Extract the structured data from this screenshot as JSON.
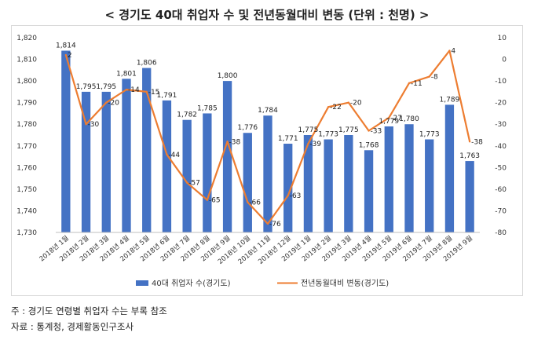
{
  "title": "< 경기도 40대 취업자 수 및 전년동월대비 변동 (단위 : 천명) >",
  "notes": {
    "note1": "주 : 경기도 연령별 취업자 수는 부록 참조",
    "note2": "자료 : 통계청, 경제활동인구조사"
  },
  "colors": {
    "bar": "#4472C4",
    "line": "#ED7D31"
  },
  "chart_data": {
    "type": "bar",
    "title": "< 경기도 40대 취업자 수 및 전년동월대비 변동 (단위 : 천명) >",
    "categories": [
      "2018년 1월",
      "2018년 2월",
      "2018년 3월",
      "2018년 4월",
      "2018년 5월",
      "2018년 6월",
      "2018년 7월",
      "2018년 8월",
      "2018년 9월",
      "2018년 10월",
      "2018년 11월",
      "2018년 12월",
      "2019년 1월",
      "2019년 2월",
      "2019년 3월",
      "2019년 4월",
      "2019년 5월",
      "2019년 6월",
      "2019년 7월",
      "2019년 8월",
      "2019년 9월"
    ],
    "series": [
      {
        "name": "40대 취업자 수(경기도)",
        "type": "bar",
        "axis": "left",
        "values": [
          1814,
          1795,
          1795,
          1801,
          1806,
          1791,
          1782,
          1785,
          1800,
          1776,
          1784,
          1771,
          1775,
          1773,
          1775,
          1768,
          1779,
          1780,
          1773,
          1789,
          1763
        ]
      },
      {
        "name": "전년동월대비 변동(경기도)",
        "type": "line",
        "axis": "right",
        "values": [
          2,
          -30,
          -20,
          -14,
          -15,
          -44,
          -57,
          -65,
          -38,
          -66,
          -76,
          -63,
          -39,
          -22,
          -20,
          -33,
          -27,
          -11,
          -8,
          4,
          -38
        ]
      }
    ],
    "bar_labels": [
      "1,814",
      "1,795",
      "1,795",
      "1,801",
      "1,806",
      "1,791",
      "1,782",
      "1,785",
      "1,800",
      "1,776",
      "1,784",
      "1,771",
      "1,775",
      "1,773",
      "1,775",
      "1,768",
      "1,779",
      "1,780",
      "1,773",
      "1,789",
      "1,763"
    ],
    "line_labels": [
      "2",
      "-30",
      "-20",
      "-14",
      "-15",
      "-44",
      "-57",
      "-65",
      "-38",
      "-66",
      "-76",
      "-63",
      "-39",
      "-22",
      "-20",
      "-33",
      "-27",
      "-11",
      "-8",
      "4",
      "-38"
    ],
    "y_left": {
      "range": [
        1730,
        1820
      ],
      "ticks": [
        "1,730",
        "1,740",
        "1,750",
        "1,760",
        "1,770",
        "1,780",
        "1,790",
        "1,800",
        "1,810",
        "1,820"
      ]
    },
    "y_right": {
      "range": [
        -80,
        10
      ],
      "ticks": [
        "-80",
        "-70",
        "-60",
        "-50",
        "-40",
        "-30",
        "-20",
        "-10",
        "0",
        "10"
      ]
    },
    "grid": false,
    "legend": "bottom"
  }
}
